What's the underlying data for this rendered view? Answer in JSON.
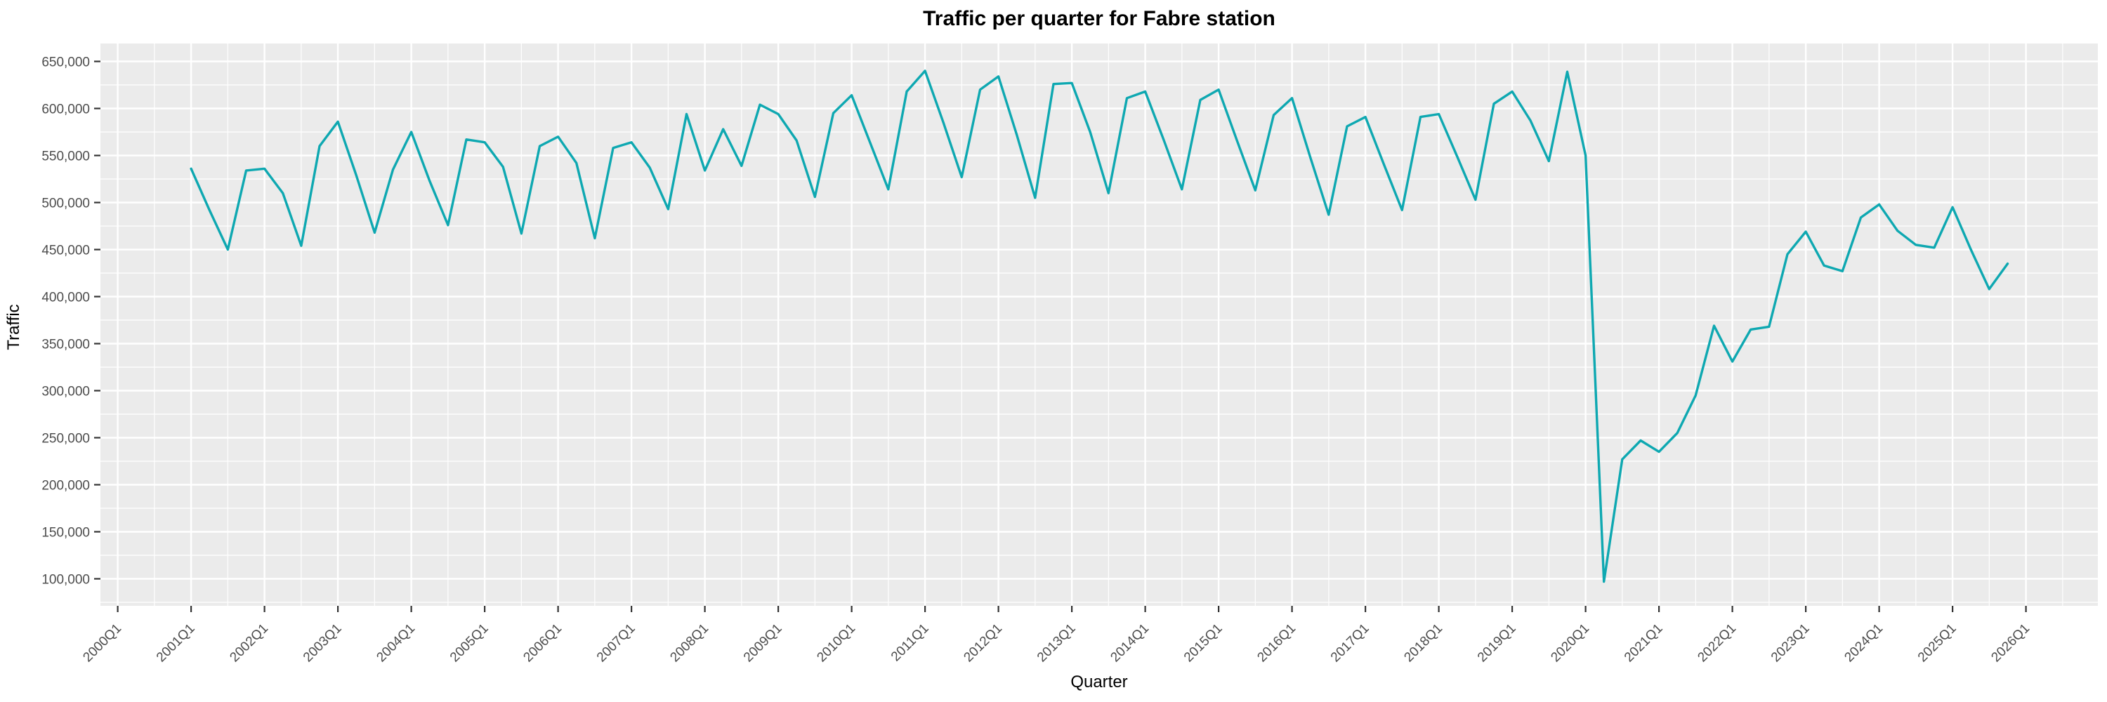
{
  "page": {
    "title": "Traffic per quarter for Fabre station"
  },
  "style": {
    "panel_background": "#EBEBEB",
    "grid_color": "#FFFFFF",
    "line_color": "#0EA8B1",
    "tick_mark_color": "#333333",
    "tick_label_color": "#4D4D4D",
    "title_color": "#000000"
  },
  "chart_data": {
    "type": "line",
    "title": "Traffic per quarter for Fabre station",
    "xlabel": "Quarter",
    "ylabel": "Traffic",
    "legend": "none",
    "grid": "major and minor, white on gray panel",
    "x_axis_ticks": [
      "2000Q1",
      "2001Q1",
      "2002Q1",
      "2003Q1",
      "2004Q1",
      "2005Q1",
      "2006Q1",
      "2007Q1",
      "2008Q1",
      "2009Q1",
      "2010Q1",
      "2011Q1",
      "2012Q1",
      "2013Q1",
      "2014Q1",
      "2015Q1",
      "2016Q1",
      "2017Q1",
      "2018Q1",
      "2019Q1",
      "2020Q1",
      "2021Q1",
      "2022Q1",
      "2023Q1",
      "2024Q1",
      "2025Q1",
      "2026Q1"
    ],
    "y_tick_values": [
      100000,
      150000,
      200000,
      250000,
      300000,
      350000,
      400000,
      450000,
      500000,
      550000,
      600000,
      650000
    ],
    "y_tick_labels": [
      "100,000",
      "150,000",
      "200,000",
      "250,000",
      "300,000",
      "350,000",
      "400,000",
      "450,000",
      "500,000",
      "550,000",
      "600,000",
      "650,000"
    ],
    "ylim": [
      71000,
      669000
    ],
    "xlim": [
      "1999Q4",
      "2027Q1"
    ],
    "x": [
      "2001Q1",
      "2001Q2",
      "2001Q3",
      "2001Q4",
      "2002Q1",
      "2002Q2",
      "2002Q3",
      "2002Q4",
      "2003Q1",
      "2003Q2",
      "2003Q3",
      "2003Q4",
      "2004Q1",
      "2004Q2",
      "2004Q3",
      "2004Q4",
      "2005Q1",
      "2005Q2",
      "2005Q3",
      "2005Q4",
      "2006Q1",
      "2006Q2",
      "2006Q3",
      "2006Q4",
      "2007Q1",
      "2007Q2",
      "2007Q3",
      "2007Q4",
      "2008Q1",
      "2008Q2",
      "2008Q3",
      "2008Q4",
      "2009Q1",
      "2009Q2",
      "2009Q3",
      "2009Q4",
      "2010Q1",
      "2010Q2",
      "2010Q3",
      "2010Q4",
      "2011Q1",
      "2011Q2",
      "2011Q3",
      "2011Q4",
      "2012Q1",
      "2012Q2",
      "2012Q3",
      "2012Q4",
      "2013Q1",
      "2013Q2",
      "2013Q3",
      "2013Q4",
      "2014Q1",
      "2014Q2",
      "2014Q3",
      "2014Q4",
      "2015Q1",
      "2015Q2",
      "2015Q3",
      "2015Q4",
      "2016Q1",
      "2016Q2",
      "2016Q3",
      "2016Q4",
      "2017Q1",
      "2017Q2",
      "2017Q3",
      "2017Q4",
      "2018Q1",
      "2018Q2",
      "2018Q3",
      "2018Q4",
      "2019Q1",
      "2019Q2",
      "2019Q3",
      "2019Q4",
      "2020Q1",
      "2020Q2",
      "2020Q3",
      "2020Q4",
      "2021Q1",
      "2021Q2",
      "2021Q3",
      "2021Q4",
      "2022Q1",
      "2022Q2",
      "2022Q3",
      "2022Q4",
      "2023Q1",
      "2023Q2",
      "2023Q3",
      "2023Q4",
      "2024Q1",
      "2024Q2",
      "2024Q3",
      "2024Q4",
      "2025Q1",
      "2025Q2",
      "2025Q3",
      "2025Q4"
    ],
    "values": [
      536000,
      492000,
      450000,
      534000,
      536000,
      510000,
      454000,
      560000,
      586000,
      529000,
      468000,
      535000,
      575000,
      523000,
      476000,
      567000,
      564000,
      538000,
      467000,
      560000,
      570000,
      542000,
      462000,
      558000,
      564000,
      537000,
      493000,
      594000,
      534000,
      578000,
      539000,
      604000,
      594000,
      566000,
      506000,
      595000,
      614000,
      564000,
      514000,
      618000,
      640000,
      585000,
      527000,
      620000,
      634000,
      572000,
      505000,
      626000,
      627000,
      575000,
      510000,
      611000,
      618000,
      567000,
      514000,
      609000,
      620000,
      566000,
      513000,
      593000,
      611000,
      548000,
      487000,
      581000,
      591000,
      541000,
      492000,
      591000,
      594000,
      549000,
      503000,
      605000,
      618000,
      587000,
      544000,
      639000,
      550000,
      97000,
      227000,
      247000,
      235000,
      255000,
      295000,
      369000,
      331000,
      365000,
      368000,
      445000,
      469000,
      433000,
      427000,
      484000,
      498000,
      470000,
      455000,
      452000,
      495000,
      450000,
      408000,
      435000
    ]
  }
}
